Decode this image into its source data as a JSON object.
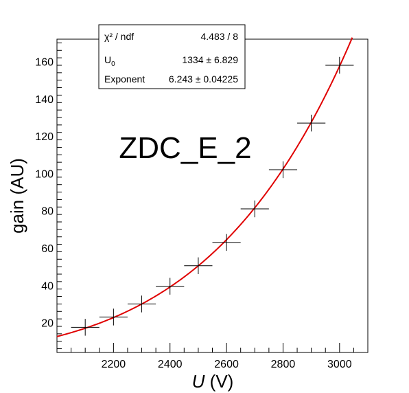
{
  "chart_data": {
    "type": "scatter",
    "title": "",
    "xlabel": "U",
    "xlabel_unit": " (V)",
    "ylabel": "gain (AU)",
    "xlim": [
      2000,
      3100
    ],
    "ylim": [
      4,
      172
    ],
    "x_ticks": [
      2200,
      2400,
      2600,
      2800,
      3000
    ],
    "y_ticks": [
      20,
      40,
      60,
      80,
      100,
      120,
      140,
      160
    ],
    "annotation": "ZDC_E_2",
    "points": [
      {
        "x": 2100,
        "y": 17.5,
        "xerr": 50,
        "yerr": 4.5
      },
      {
        "x": 2200,
        "y": 23.0,
        "xerr": 50,
        "yerr": 4.5
      },
      {
        "x": 2300,
        "y": 30.0,
        "xerr": 50,
        "yerr": 4.5
      },
      {
        "x": 2400,
        "y": 39.5,
        "xerr": 50,
        "yerr": 4.5
      },
      {
        "x": 2500,
        "y": 50.5,
        "xerr": 50,
        "yerr": 4.5
      },
      {
        "x": 2600,
        "y": 63.0,
        "xerr": 50,
        "yerr": 4.5
      },
      {
        "x": 2700,
        "y": 81.0,
        "xerr": 50,
        "yerr": 4.5
      },
      {
        "x": 2800,
        "y": 102.0,
        "xerr": 50,
        "yerr": 4.5
      },
      {
        "x": 2900,
        "y": 127.0,
        "xerr": 50,
        "yerr": 4.5
      },
      {
        "x": 3000,
        "y": 158.0,
        "xerr": 50,
        "yerr": 4.5
      }
    ],
    "fit": {
      "color": "#e00000",
      "U0": 1334,
      "exponent": 6.243,
      "x_start": 2000,
      "x_end": 3045
    },
    "stats": {
      "rows": [
        {
          "label": "χ² / ndf",
          "value": "4.483 / 8"
        },
        {
          "label": "U",
          "label_sub": "0",
          "value": "1334 ± 6.829"
        },
        {
          "label": "Exponent",
          "value": "6.243 ± 0.04225"
        }
      ]
    }
  }
}
